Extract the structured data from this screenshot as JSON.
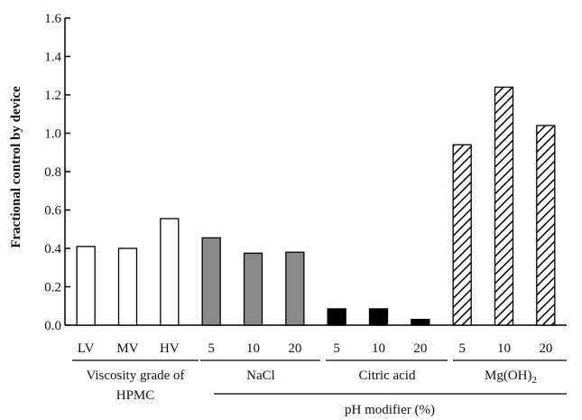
{
  "chart_data": {
    "type": "bar",
    "ylabel": "Fractional control by device",
    "ylim": [
      0,
      1.6
    ],
    "yticks": [
      "0.0",
      "0.2",
      "0.4",
      "0.6",
      "0.8",
      "1.0",
      "1.2",
      "1.4",
      "1.6"
    ],
    "categories": [
      "LV",
      "MV",
      "HV",
      "5",
      "10",
      "20",
      "5",
      "10",
      "20",
      "5",
      "10",
      "20"
    ],
    "values": [
      0.41,
      0.4,
      0.555,
      0.455,
      0.375,
      0.38,
      0.085,
      0.085,
      0.03,
      0.94,
      1.24,
      1.04
    ],
    "groups": [
      {
        "label_lines": [
          "Viscosity grade of",
          "HPMC"
        ],
        "fill": "white"
      },
      {
        "label_lines": [
          "NaCl"
        ],
        "fill": "gray"
      },
      {
        "label_lines": [
          "Citric acid"
        ],
        "fill": "black"
      },
      {
        "label_lines": [
          "Mg(OH)",
          "2"
        ],
        "fill": "hatch"
      }
    ],
    "super_group_label": "pH modifier (%)",
    "colors": {
      "gray": "#8a8a8a",
      "black": "#000000",
      "white": "#ffffff"
    }
  }
}
